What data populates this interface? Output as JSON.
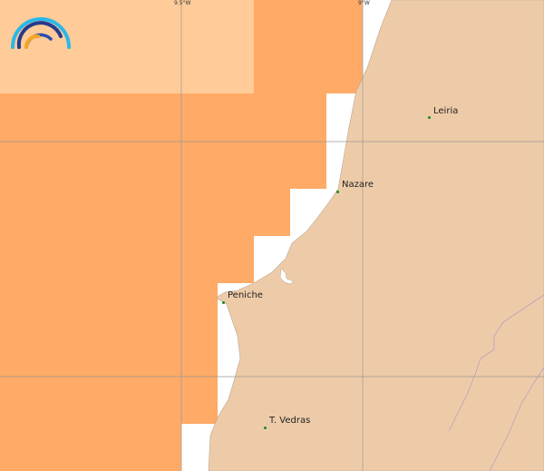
{
  "map": {
    "grid_labels": {
      "lon1": "9.5°W",
      "lon2": "9°W"
    },
    "places": [
      {
        "name": "Leiria"
      },
      {
        "name": "Nazare"
      },
      {
        "name": "Peniche"
      },
      {
        "name": "T. Vedras"
      }
    ],
    "colors": {
      "zone_dark": "#ffaa66",
      "zone_light": "#ffcc99",
      "land": "#eecba8",
      "sea": "#ffffff",
      "place_dot": "#1a8a1a"
    },
    "logo_icon": "rainbow-arcs-logo"
  }
}
